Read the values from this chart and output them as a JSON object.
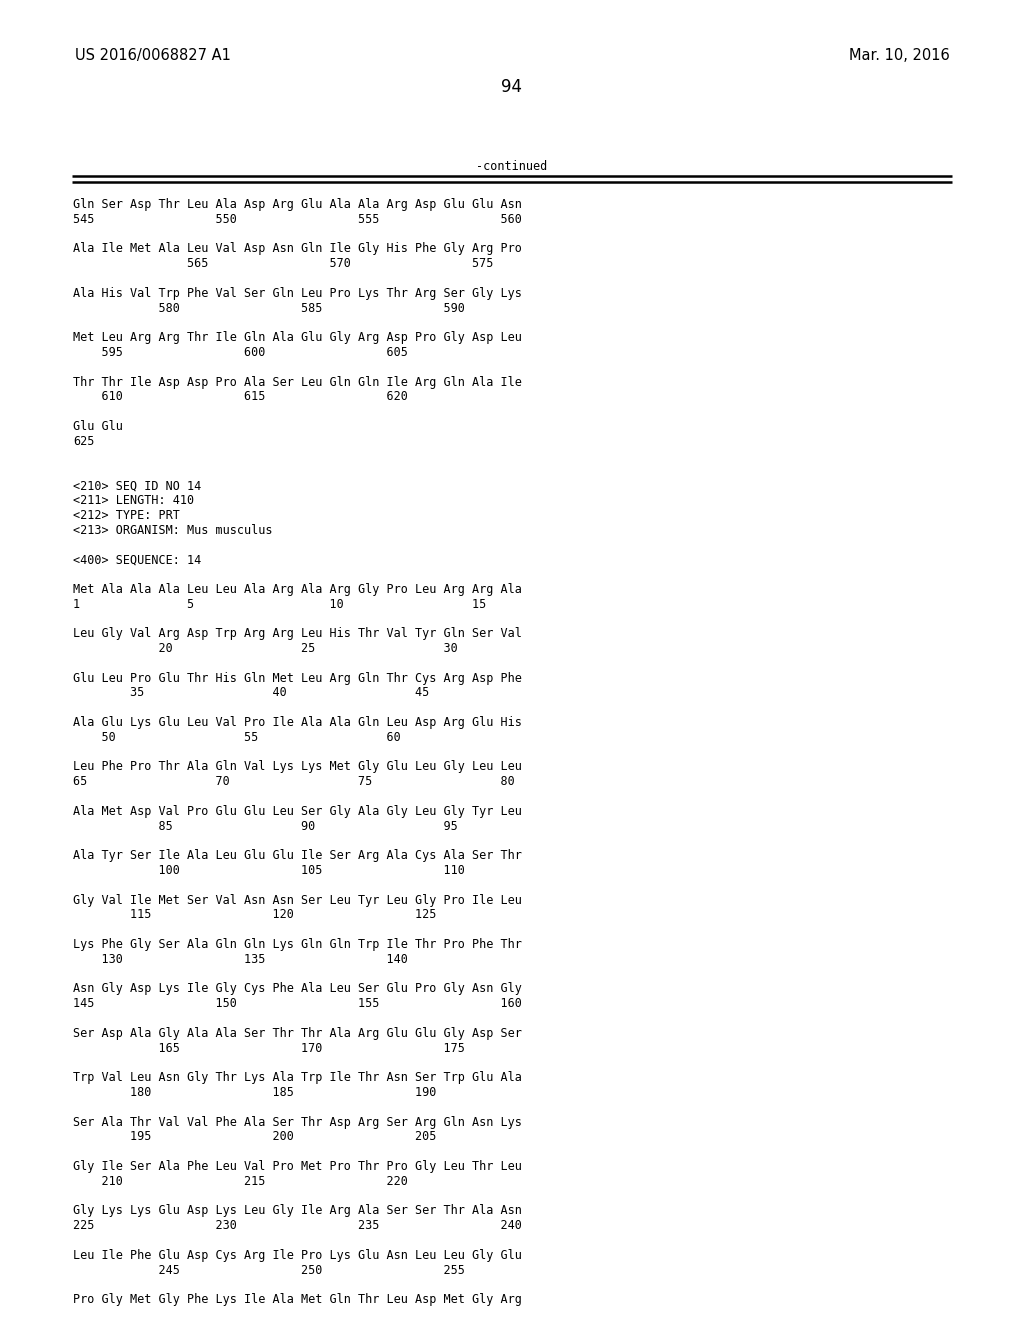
{
  "header_left": "US 2016/0068827 A1",
  "header_right": "Mar. 10, 2016",
  "page_number": "94",
  "continued_label": "-continued",
  "background_color": "#ffffff",
  "text_color": "#000000",
  "content_lines": [
    "Gln Ser Asp Thr Leu Ala Asp Arg Glu Ala Ala Arg Asp Glu Glu Asn",
    "545                 550                 555                 560",
    "",
    "Ala Ile Met Ala Leu Val Asp Asn Gln Ile Gly His Phe Gly Arg Pro",
    "                565                 570                 575",
    "",
    "Ala His Val Trp Phe Val Ser Gln Leu Pro Lys Thr Arg Ser Gly Lys",
    "            580                 585                 590",
    "",
    "Met Leu Arg Arg Thr Ile Gln Ala Glu Gly Arg Asp Pro Gly Asp Leu",
    "    595                 600                 605",
    "",
    "Thr Thr Ile Asp Asp Pro Ala Ser Leu Gln Gln Ile Arg Gln Ala Ile",
    "    610                 615                 620",
    "",
    "Glu Glu",
    "625",
    "",
    "",
    "<210> SEQ ID NO 14",
    "<211> LENGTH: 410",
    "<212> TYPE: PRT",
    "<213> ORGANISM: Mus musculus",
    "",
    "<400> SEQUENCE: 14",
    "",
    "Met Ala Ala Ala Leu Leu Ala Arg Ala Arg Gly Pro Leu Arg Arg Ala",
    "1               5                   10                  15",
    "",
    "Leu Gly Val Arg Asp Trp Arg Arg Leu His Thr Val Tyr Gln Ser Val",
    "            20                  25                  30",
    "",
    "Glu Leu Pro Glu Thr His Gln Met Leu Arg Gln Thr Cys Arg Asp Phe",
    "        35                  40                  45",
    "",
    "Ala Glu Lys Glu Leu Val Pro Ile Ala Ala Gln Leu Asp Arg Glu His",
    "    50                  55                  60",
    "",
    "Leu Phe Pro Thr Ala Gln Val Lys Lys Met Gly Glu Leu Gly Leu Leu",
    "65                  70                  75                  80",
    "",
    "Ala Met Asp Val Pro Glu Glu Leu Ser Gly Ala Gly Leu Gly Tyr Leu",
    "            85                  90                  95",
    "",
    "Ala Tyr Ser Ile Ala Leu Glu Glu Ile Ser Arg Ala Cys Ala Ser Thr",
    "            100                 105                 110",
    "",
    "Gly Val Ile Met Ser Val Asn Asn Ser Leu Tyr Leu Gly Pro Ile Leu",
    "        115                 120                 125",
    "",
    "Lys Phe Gly Ser Ala Gln Gln Lys Gln Gln Trp Ile Thr Pro Phe Thr",
    "    130                 135                 140",
    "",
    "Asn Gly Asp Lys Ile Gly Cys Phe Ala Leu Ser Glu Pro Gly Asn Gly",
    "145                 150                 155                 160",
    "",
    "Ser Asp Ala Gly Ala Ala Ser Thr Thr Ala Arg Glu Glu Gly Asp Ser",
    "            165                 170                 175",
    "",
    "Trp Val Leu Asn Gly Thr Lys Ala Trp Ile Thr Asn Ser Trp Glu Ala",
    "        180                 185                 190",
    "",
    "Ser Ala Thr Val Val Phe Ala Ser Thr Asp Arg Ser Arg Gln Asn Lys",
    "        195                 200                 205",
    "",
    "Gly Ile Ser Ala Phe Leu Val Pro Met Pro Thr Pro Gly Leu Thr Leu",
    "    210                 215                 220",
    "",
    "Gly Lys Lys Glu Asp Lys Leu Gly Ile Arg Ala Ser Ser Thr Ala Asn",
    "225                 230                 235                 240",
    "",
    "Leu Ile Phe Glu Asp Cys Arg Ile Pro Lys Glu Asn Leu Leu Gly Glu",
    "            245                 250                 255",
    "",
    "Pro Gly Met Gly Phe Lys Ile Ala Met Gln Thr Leu Asp Met Gly Arg"
  ]
}
